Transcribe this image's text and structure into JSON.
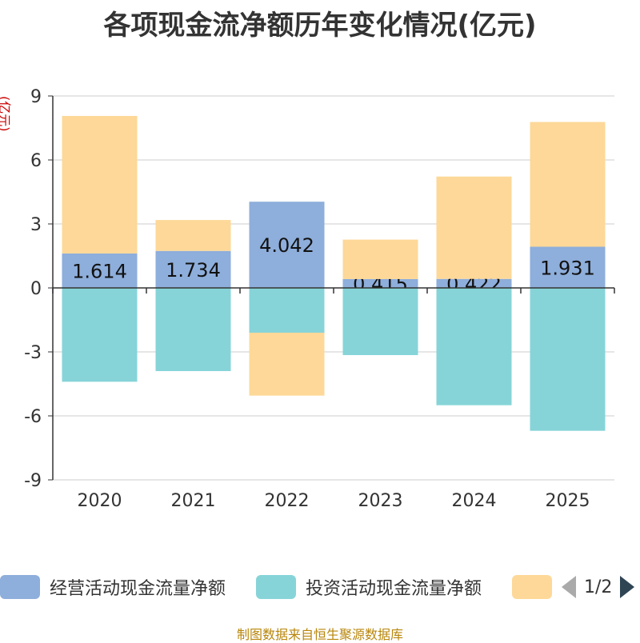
{
  "chart_data": {
    "type": "bar",
    "title": "各项现金流净额历年变化情况(亿元)",
    "ylabel": "(亿元)",
    "xlabel": "",
    "ylim": [
      -9,
      9
    ],
    "yticks": [
      9,
      6,
      3,
      0,
      -3,
      -6,
      -9
    ],
    "categories": [
      "2020",
      "2021",
      "2022",
      "2023",
      "2024",
      "2025"
    ],
    "series": [
      {
        "name": "经营活动现金流量净额",
        "color": "#8eaedb",
        "values": [
          1.614,
          1.734,
          4.042,
          0.415,
          0.422,
          1.931
        ],
        "labels": [
          "1.614",
          "1.734",
          "4.042",
          "0.415",
          "0.422",
          "1.931"
        ]
      },
      {
        "name": "投资活动现金流量净额",
        "color": "#86d4d8",
        "values": [
          -4.4,
          -3.9,
          -2.1,
          -3.15,
          -5.5,
          -6.7
        ]
      },
      {
        "name": "",
        "color": "#fdd898",
        "values": [
          6.45,
          1.45,
          -2.95,
          1.85,
          4.8,
          5.85
        ]
      }
    ]
  },
  "legend": {
    "items": [
      {
        "label": "经营活动现金流量净额",
        "color": "#8eaedb"
      },
      {
        "label": "投资活动现金流量净额",
        "color": "#86d4d8"
      },
      {
        "label": "",
        "color": "#fdd898"
      }
    ],
    "page": "1/2"
  },
  "source": "制图数据来自恒生聚源数据库"
}
